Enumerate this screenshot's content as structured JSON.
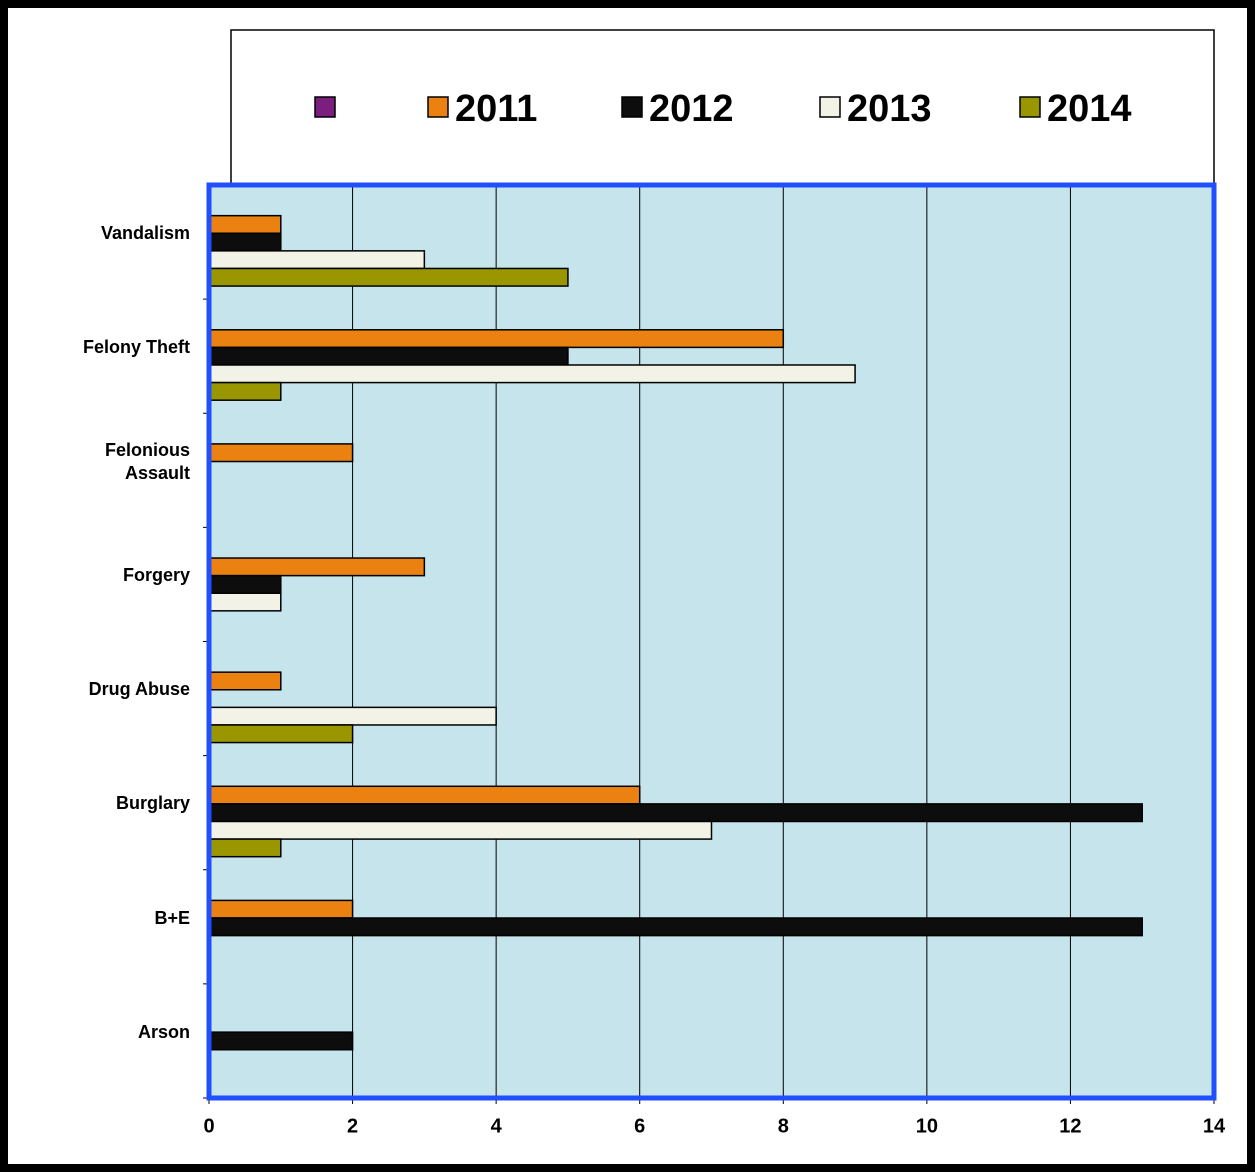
{
  "chart_data": {
    "type": "hbar",
    "categories": [
      "Vandalism",
      "Felony Theft",
      "Felonious Assault",
      "Forgery",
      "Drug Abuse",
      "Burglary",
      "B+E",
      "Arson"
    ],
    "series": [
      {
        "name": null,
        "color": "#7b1f7f",
        "values": [
          null,
          null,
          null,
          null,
          null,
          null,
          null,
          null
        ]
      },
      {
        "name": "2011",
        "color": "#ea8111",
        "values": [
          1,
          8,
          2,
          3,
          1,
          6,
          2,
          0
        ]
      },
      {
        "name": "2012",
        "color": "#0d0d0d",
        "values": [
          1,
          5,
          0,
          1,
          0,
          13,
          13,
          2
        ]
      },
      {
        "name": "2013",
        "color": "#f2f2e6",
        "values": [
          3,
          9,
          0,
          1,
          4,
          7,
          0,
          0
        ]
      },
      {
        "name": "2014",
        "color": "#999600",
        "values": [
          5,
          1,
          0,
          0,
          2,
          1,
          0,
          0
        ]
      }
    ],
    "xlim": [
      0,
      14
    ],
    "xticks": [
      0,
      2,
      4,
      6,
      8,
      10,
      12,
      14
    ],
    "grid": true,
    "plot_background": "#c5e4ec",
    "plot_border": "#1f4fff",
    "legend": "top"
  }
}
